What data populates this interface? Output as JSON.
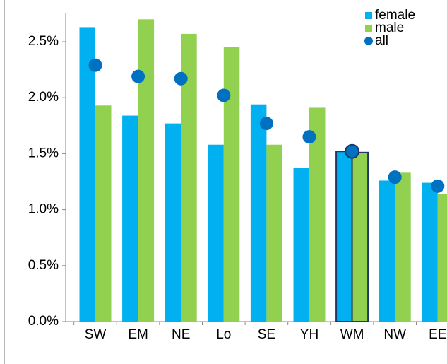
{
  "chart_data": {
    "type": "bar",
    "categories": [
      "SW",
      "EM",
      "NE",
      "Lo",
      "SE",
      "YH",
      "WM",
      "NW",
      "EE"
    ],
    "series": [
      {
        "name": "female",
        "color": "#00b0f0",
        "values": [
          2.63,
          1.84,
          1.77,
          1.58,
          1.94,
          1.37,
          1.52,
          1.26,
          1.24
        ]
      },
      {
        "name": "male",
        "color": "#92d050",
        "values": [
          1.93,
          2.7,
          2.57,
          2.45,
          1.58,
          1.91,
          1.51,
          1.33,
          1.14
        ]
      },
      {
        "name": "all",
        "color": "#0070c0",
        "kind": "dot",
        "values": [
          2.29,
          2.19,
          2.17,
          2.02,
          1.77,
          1.65,
          1.52,
          1.29,
          1.21
        ]
      }
    ],
    "highlight": "WM",
    "ylim": [
      0,
      2.75
    ],
    "yticks": [
      {
        "value": 0,
        "label": "0.0%"
      },
      {
        "value": 0.5,
        "label": "0.5%"
      },
      {
        "value": 1.0,
        "label": "1.0%"
      },
      {
        "value": 1.5,
        "label": "1.5%"
      },
      {
        "value": 2.0,
        "label": "2.0%"
      },
      {
        "value": 2.5,
        "label": "2.5%"
      }
    ],
    "grid": false,
    "legend": "top-right"
  }
}
